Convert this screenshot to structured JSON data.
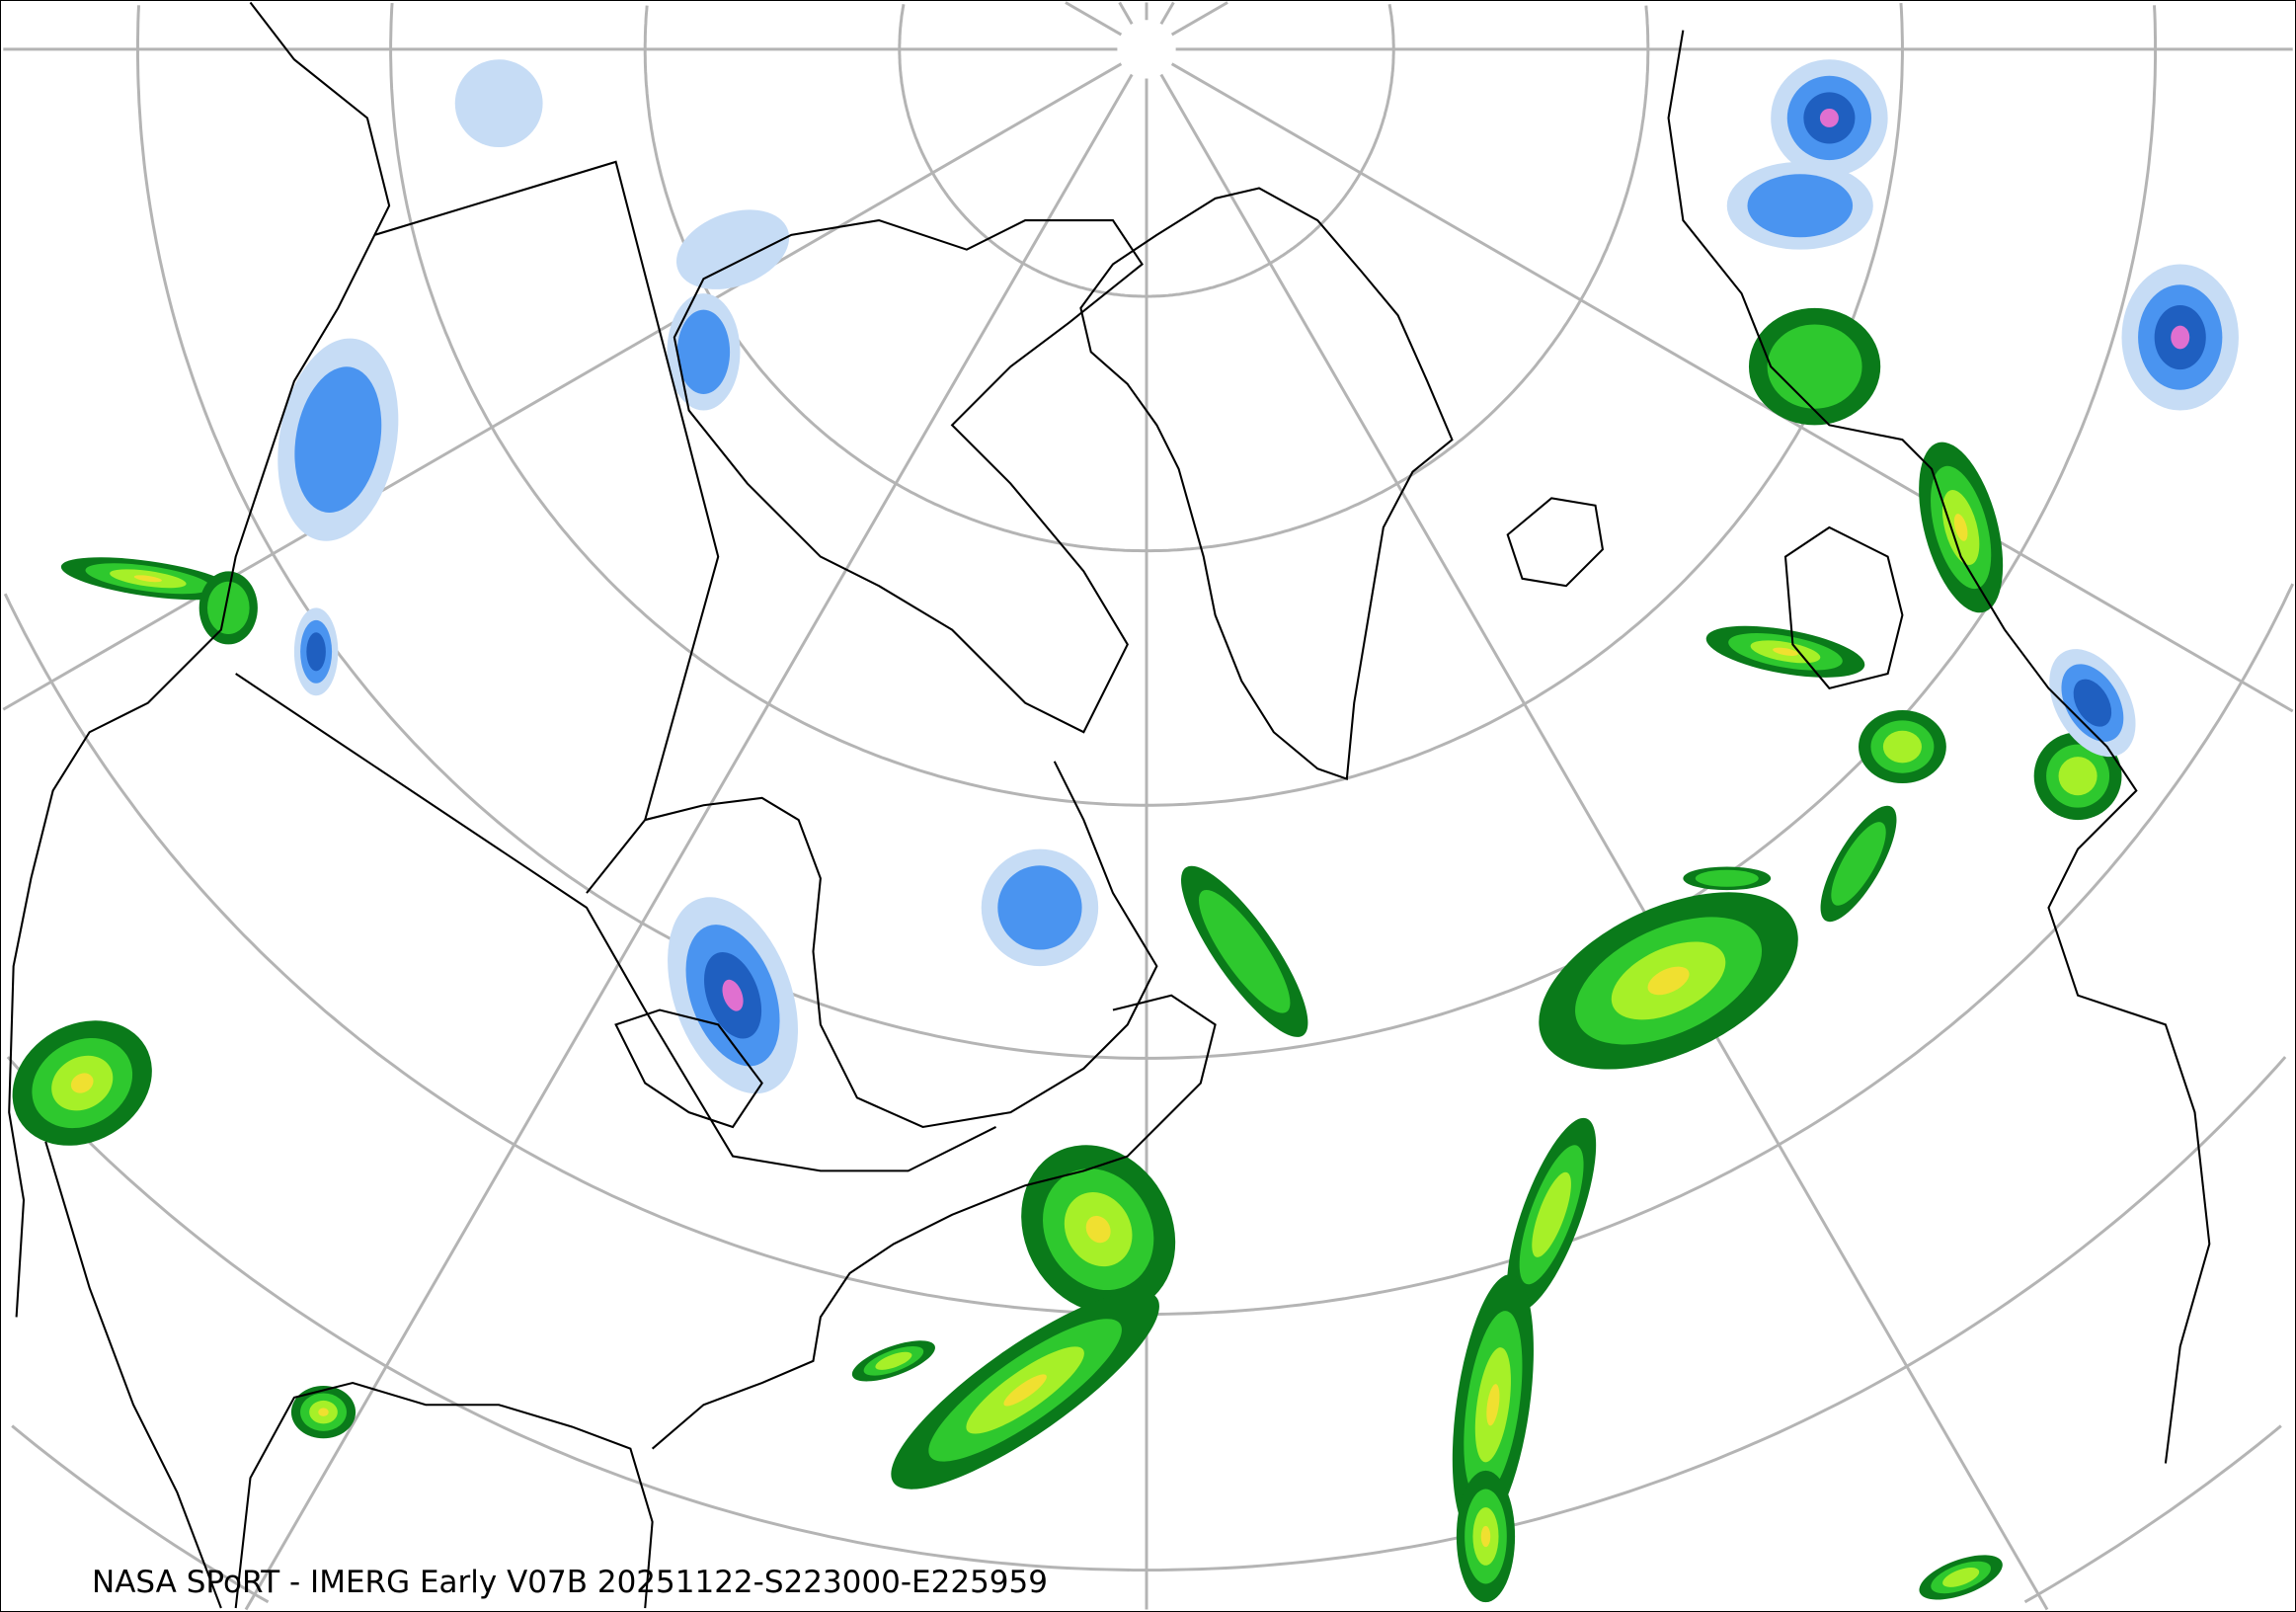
{
  "map": {
    "caption": "NASA SPoRT - IMERG Early V07B 20251122-S223000-E225959",
    "projection": "north-polar-stereographic",
    "colors": {
      "graticule": "#b4b4b4",
      "coastline": "#000000",
      "precip_light_blue": "#c6dcf5",
      "precip_blue": "#4a94f0",
      "precip_dark_blue": "#1f5fc0",
      "precip_pink": "#e070d0",
      "precip_dark_green": "#0a7a1a",
      "precip_green": "#2ec82e",
      "precip_light_green": "#a6f028",
      "precip_yellow": "#f0e030",
      "precip_orange": "#f08a28",
      "precip_red": "#e01818"
    }
  }
}
